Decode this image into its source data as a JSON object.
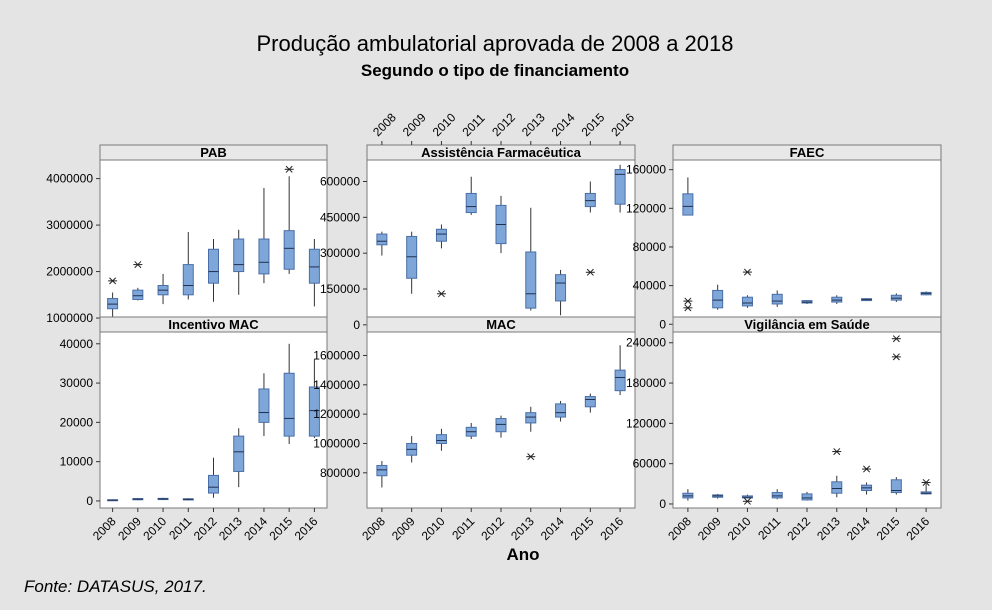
{
  "title": "Produção ambulatorial aprovada de 2008 a 2018",
  "subtitle": "Segundo o tipo de financiamento",
  "xlabel": "Ano",
  "source": "Fonte: DATASUS, 2017.",
  "colors": {
    "background": "#e4e4e4",
    "box": "#7ea6d8",
    "outline": "#4a6fa8",
    "strip": "#e8e8e8",
    "panel": "#ffffff"
  },
  "chart_data": [
    {
      "type": "box",
      "title": "PAB",
      "categories": [
        "2008",
        "2009",
        "2010",
        "2011",
        "2012",
        "2013",
        "2014",
        "2015",
        "2016"
      ],
      "ylim": [
        700000,
        4400000
      ],
      "yticks": [
        1000000,
        2000000,
        3000000,
        4000000
      ],
      "ytick_labels": [
        "1000000",
        "2000000",
        "3000000",
        "4000000"
      ],
      "boxes": [
        {
          "min": 950000,
          "q1": 1200000,
          "median": 1300000,
          "q3": 1420000,
          "max": 1550000,
          "outliers": [
            1800000
          ]
        },
        {
          "min": 1380000,
          "q1": 1400000,
          "median": 1480000,
          "q3": 1600000,
          "max": 1650000,
          "outliers": [
            2150000
          ]
        },
        {
          "min": 1300000,
          "q1": 1500000,
          "median": 1600000,
          "q3": 1700000,
          "max": 1950000,
          "outliers": []
        },
        {
          "min": 1400000,
          "q1": 1500000,
          "median": 1700000,
          "q3": 2150000,
          "max": 2850000,
          "outliers": []
        },
        {
          "min": 1350000,
          "q1": 1750000,
          "median": 2000000,
          "q3": 2480000,
          "max": 2700000,
          "outliers": []
        },
        {
          "min": 1500000,
          "q1": 2000000,
          "median": 2150000,
          "q3": 2700000,
          "max": 2900000,
          "outliers": []
        },
        {
          "min": 1750000,
          "q1": 1950000,
          "median": 2200000,
          "q3": 2700000,
          "max": 3800000,
          "outliers": []
        },
        {
          "min": 1950000,
          "q1": 2050000,
          "median": 2500000,
          "q3": 2880000,
          "max": 4050000,
          "outliers": [
            4200000
          ]
        },
        {
          "min": 1250000,
          "q1": 1750000,
          "median": 2100000,
          "q3": 2480000,
          "max": 2700000,
          "outliers": []
        }
      ]
    },
    {
      "type": "box",
      "title": "Assistência Farmacêutica",
      "categories": [
        "2008",
        "2009",
        "2010",
        "2011",
        "2012",
        "2013",
        "2014",
        "2015",
        "2016"
      ],
      "ylim": [
        -30000,
        690000
      ],
      "yticks": [
        0,
        150000,
        300000,
        450000,
        600000
      ],
      "ytick_labels": [
        "0",
        "150000",
        "300000",
        "450000",
        "600000"
      ],
      "boxes": [
        {
          "min": 290000,
          "q1": 335000,
          "median": 350000,
          "q3": 380000,
          "max": 390000,
          "outliers": []
        },
        {
          "min": 130000,
          "q1": 195000,
          "median": 285000,
          "q3": 370000,
          "max": 390000,
          "outliers": []
        },
        {
          "min": 320000,
          "q1": 350000,
          "median": 380000,
          "q3": 400000,
          "max": 420000,
          "outliers": [
            130000
          ]
        },
        {
          "min": 460000,
          "q1": 470000,
          "median": 495000,
          "q3": 550000,
          "max": 620000,
          "outliers": []
        },
        {
          "min": 300000,
          "q1": 340000,
          "median": 420000,
          "q3": 500000,
          "max": 540000,
          "outliers": []
        },
        {
          "min": 60000,
          "q1": 70000,
          "median": 130000,
          "q3": 305000,
          "max": 490000,
          "outliers": []
        },
        {
          "min": 40000,
          "q1": 100000,
          "median": 175000,
          "q3": 210000,
          "max": 230000,
          "outliers": []
        },
        {
          "min": 470000,
          "q1": 495000,
          "median": 520000,
          "q3": 550000,
          "max": 600000,
          "outliers": [
            220000
          ]
        },
        {
          "min": 470000,
          "q1": 505000,
          "median": 630000,
          "q3": 650000,
          "max": 670000,
          "outliers": []
        }
      ]
    },
    {
      "type": "box",
      "title": "FAEC",
      "categories": [
        "2008",
        "2009",
        "2010",
        "2011",
        "2012",
        "2013",
        "2014",
        "2015",
        "2016"
      ],
      "ylim": [
        -8000,
        170000
      ],
      "yticks": [
        0,
        40000,
        80000,
        120000,
        160000
      ],
      "ytick_labels": [
        "0",
        "40000",
        "80000",
        "120000",
        "160000"
      ],
      "boxes": [
        {
          "min": 113000,
          "q1": 113000,
          "median": 122000,
          "q3": 135000,
          "max": 152000,
          "outliers": [
            17000,
            24000
          ]
        },
        {
          "min": 15000,
          "q1": 17000,
          "median": 25000,
          "q3": 35000,
          "max": 41000,
          "outliers": []
        },
        {
          "min": 17000,
          "q1": 19000,
          "median": 22000,
          "q3": 28000,
          "max": 30000,
          "outliers": [
            54000
          ]
        },
        {
          "min": 18000,
          "q1": 21000,
          "median": 24000,
          "q3": 31000,
          "max": 35000,
          "outliers": []
        },
        {
          "min": 21000,
          "q1": 22000,
          "median": 23000,
          "q3": 24500,
          "max": 25000,
          "outliers": []
        },
        {
          "min": 21000,
          "q1": 23000,
          "median": 25000,
          "q3": 28000,
          "max": 30000,
          "outliers": []
        },
        {
          "min": 24000,
          "q1": 24500,
          "median": 25500,
          "q3": 26500,
          "max": 27000,
          "outliers": []
        },
        {
          "min": 23000,
          "q1": 25000,
          "median": 27000,
          "q3": 30000,
          "max": 32000,
          "outliers": []
        },
        {
          "min": 30000,
          "q1": 30500,
          "median": 32000,
          "q3": 33000,
          "max": 34000,
          "outliers": []
        }
      ]
    },
    {
      "type": "box",
      "title": "Incentivo MAC",
      "categories": [
        "2008",
        "2009",
        "2010",
        "2011",
        "2012",
        "2013",
        "2014",
        "2015",
        "2016"
      ],
      "ylim": [
        -1800,
        43000
      ],
      "yticks": [
        0,
        10000,
        20000,
        30000,
        40000
      ],
      "ytick_labels": [
        "0",
        "10000",
        "20000",
        "30000",
        "40000"
      ],
      "boxes": [
        {
          "min": 0,
          "q1": 100,
          "median": 200,
          "q3": 300,
          "max": 400,
          "outliers": []
        },
        {
          "min": 150,
          "q1": 300,
          "median": 450,
          "q3": 600,
          "max": 750,
          "outliers": []
        },
        {
          "min": 200,
          "q1": 350,
          "median": 500,
          "q3": 650,
          "max": 800,
          "outliers": []
        },
        {
          "min": 100,
          "q1": 250,
          "median": 400,
          "q3": 550,
          "max": 700,
          "outliers": []
        },
        {
          "min": 800,
          "q1": 2000,
          "median": 3500,
          "q3": 6500,
          "max": 11000,
          "outliers": []
        },
        {
          "min": 3500,
          "q1": 7500,
          "median": 12500,
          "q3": 16500,
          "max": 18500,
          "outliers": []
        },
        {
          "min": 16500,
          "q1": 20000,
          "median": 22500,
          "q3": 28500,
          "max": 32500,
          "outliers": []
        },
        {
          "min": 14500,
          "q1": 16500,
          "median": 21000,
          "q3": 32500,
          "max": 40000,
          "outliers": []
        },
        {
          "min": 16000,
          "q1": 16500,
          "median": 23000,
          "q3": 29000,
          "max": 36000,
          "outliers": []
        }
      ]
    },
    {
      "type": "box",
      "title": "MAC",
      "categories": [
        "2008",
        "2009",
        "2010",
        "2011",
        "2012",
        "2013",
        "2014",
        "2015",
        "2016"
      ],
      "ylim": [
        560000,
        1760000
      ],
      "yticks": [
        800000,
        1000000,
        1200000,
        1400000,
        1600000
      ],
      "ytick_labels": [
        "800000",
        "1000000",
        "1200000",
        "1400000",
        "1600000"
      ],
      "boxes": [
        {
          "min": 700000,
          "q1": 780000,
          "median": 820000,
          "q3": 850000,
          "max": 880000,
          "outliers": []
        },
        {
          "min": 870000,
          "q1": 920000,
          "median": 960000,
          "q3": 1000000,
          "max": 1050000,
          "outliers": []
        },
        {
          "min": 950000,
          "q1": 1000000,
          "median": 1020000,
          "q3": 1060000,
          "max": 1100000,
          "outliers": []
        },
        {
          "min": 1030000,
          "q1": 1050000,
          "median": 1080000,
          "q3": 1110000,
          "max": 1140000,
          "outliers": []
        },
        {
          "min": 1040000,
          "q1": 1080000,
          "median": 1130000,
          "q3": 1170000,
          "max": 1190000,
          "outliers": []
        },
        {
          "min": 1080000,
          "q1": 1140000,
          "median": 1180000,
          "q3": 1210000,
          "max": 1250000,
          "outliers": [
            910000
          ]
        },
        {
          "min": 1150000,
          "q1": 1180000,
          "median": 1210000,
          "q3": 1270000,
          "max": 1290000,
          "outliers": []
        },
        {
          "min": 1210000,
          "q1": 1250000,
          "median": 1300000,
          "q3": 1320000,
          "max": 1340000,
          "outliers": []
        },
        {
          "min": 1330000,
          "q1": 1360000,
          "median": 1450000,
          "q3": 1500000,
          "max": 1670000,
          "outliers": []
        }
      ]
    },
    {
      "type": "box",
      "title": "Vigilância em Saúde",
      "categories": [
        "2008",
        "2009",
        "2010",
        "2011",
        "2012",
        "2013",
        "2014",
        "2015",
        "2016"
      ],
      "ylim": [
        -6000,
        256000
      ],
      "yticks": [
        0,
        60000,
        120000,
        180000,
        240000
      ],
      "ytick_labels": [
        "0",
        "60000",
        "120000",
        "180000",
        "240000"
      ],
      "boxes": [
        {
          "min": 5000,
          "q1": 9000,
          "median": 12000,
          "q3": 16000,
          "max": 22000,
          "outliers": []
        },
        {
          "min": 8000,
          "q1": 10000,
          "median": 12000,
          "q3": 13500,
          "max": 15000,
          "outliers": []
        },
        {
          "min": 8000,
          "q1": 9000,
          "median": 10000,
          "q3": 12000,
          "max": 14000,
          "outliers": [
            4000
          ]
        },
        {
          "min": 7000,
          "q1": 9000,
          "median": 12000,
          "q3": 17000,
          "max": 22000,
          "outliers": []
        },
        {
          "min": 5000,
          "q1": 6000,
          "median": 9000,
          "q3": 15000,
          "max": 18000,
          "outliers": []
        },
        {
          "min": 10000,
          "q1": 16000,
          "median": 23000,
          "q3": 33000,
          "max": 42000,
          "outliers": [
            78000
          ]
        },
        {
          "min": 14000,
          "q1": 20000,
          "median": 24000,
          "q3": 28000,
          "max": 32000,
          "outliers": [
            52000
          ]
        },
        {
          "min": 14000,
          "q1": 17000,
          "median": 20000,
          "q3": 36000,
          "max": 40000,
          "outliers": [
            219000,
            246000
          ]
        },
        {
          "min": 14000,
          "q1": 15000,
          "median": 16000,
          "q3": 18000,
          "max": 30000,
          "outliers": [
            32000
          ]
        }
      ]
    }
  ]
}
